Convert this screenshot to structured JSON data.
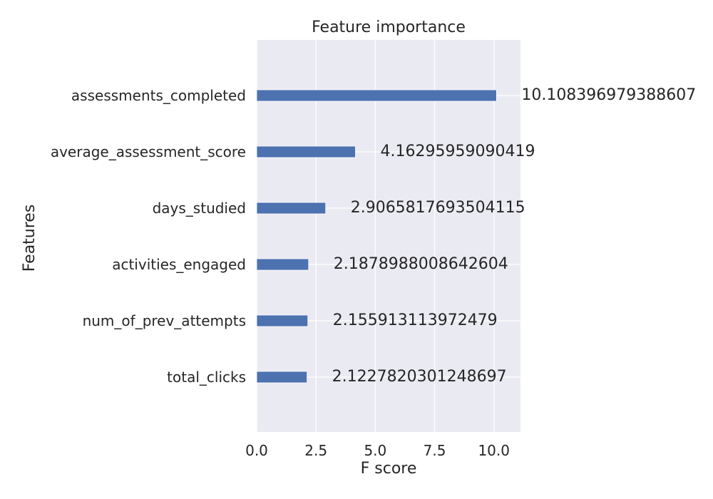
{
  "chart_data": {
    "type": "bar",
    "orientation": "horizontal",
    "title": "Feature importance",
    "xlabel": "F score",
    "ylabel": "Features",
    "categories": [
      "assessments_completed",
      "average_assessment_score",
      "days_studied",
      "activities_engaged",
      "num_of_prev_attempts",
      "total_clicks"
    ],
    "values": [
      10.108396979388607,
      4.16295959090419,
      2.9065817693504115,
      2.1878988008642604,
      2.155913113972479,
      2.1227820301248697
    ],
    "value_labels": [
      "10.108396979388607",
      "4.16295959090419",
      "2.9065817693504115",
      "2.1878988008642604",
      "2.155913113972479",
      "2.1227820301248697"
    ],
    "xlim": [
      0,
      11.12
    ],
    "xticks": [
      0.0,
      2.5,
      5.0,
      7.5,
      10.0
    ],
    "xtick_labels": [
      "0.0",
      "2.5",
      "5.0",
      "7.5",
      "10.0"
    ],
    "grid": true,
    "legend": "none",
    "colors": {
      "bar": "#4c72b0",
      "plot_background": "#eaeaf2",
      "grid": "#ffffff",
      "text": "#262626"
    }
  }
}
